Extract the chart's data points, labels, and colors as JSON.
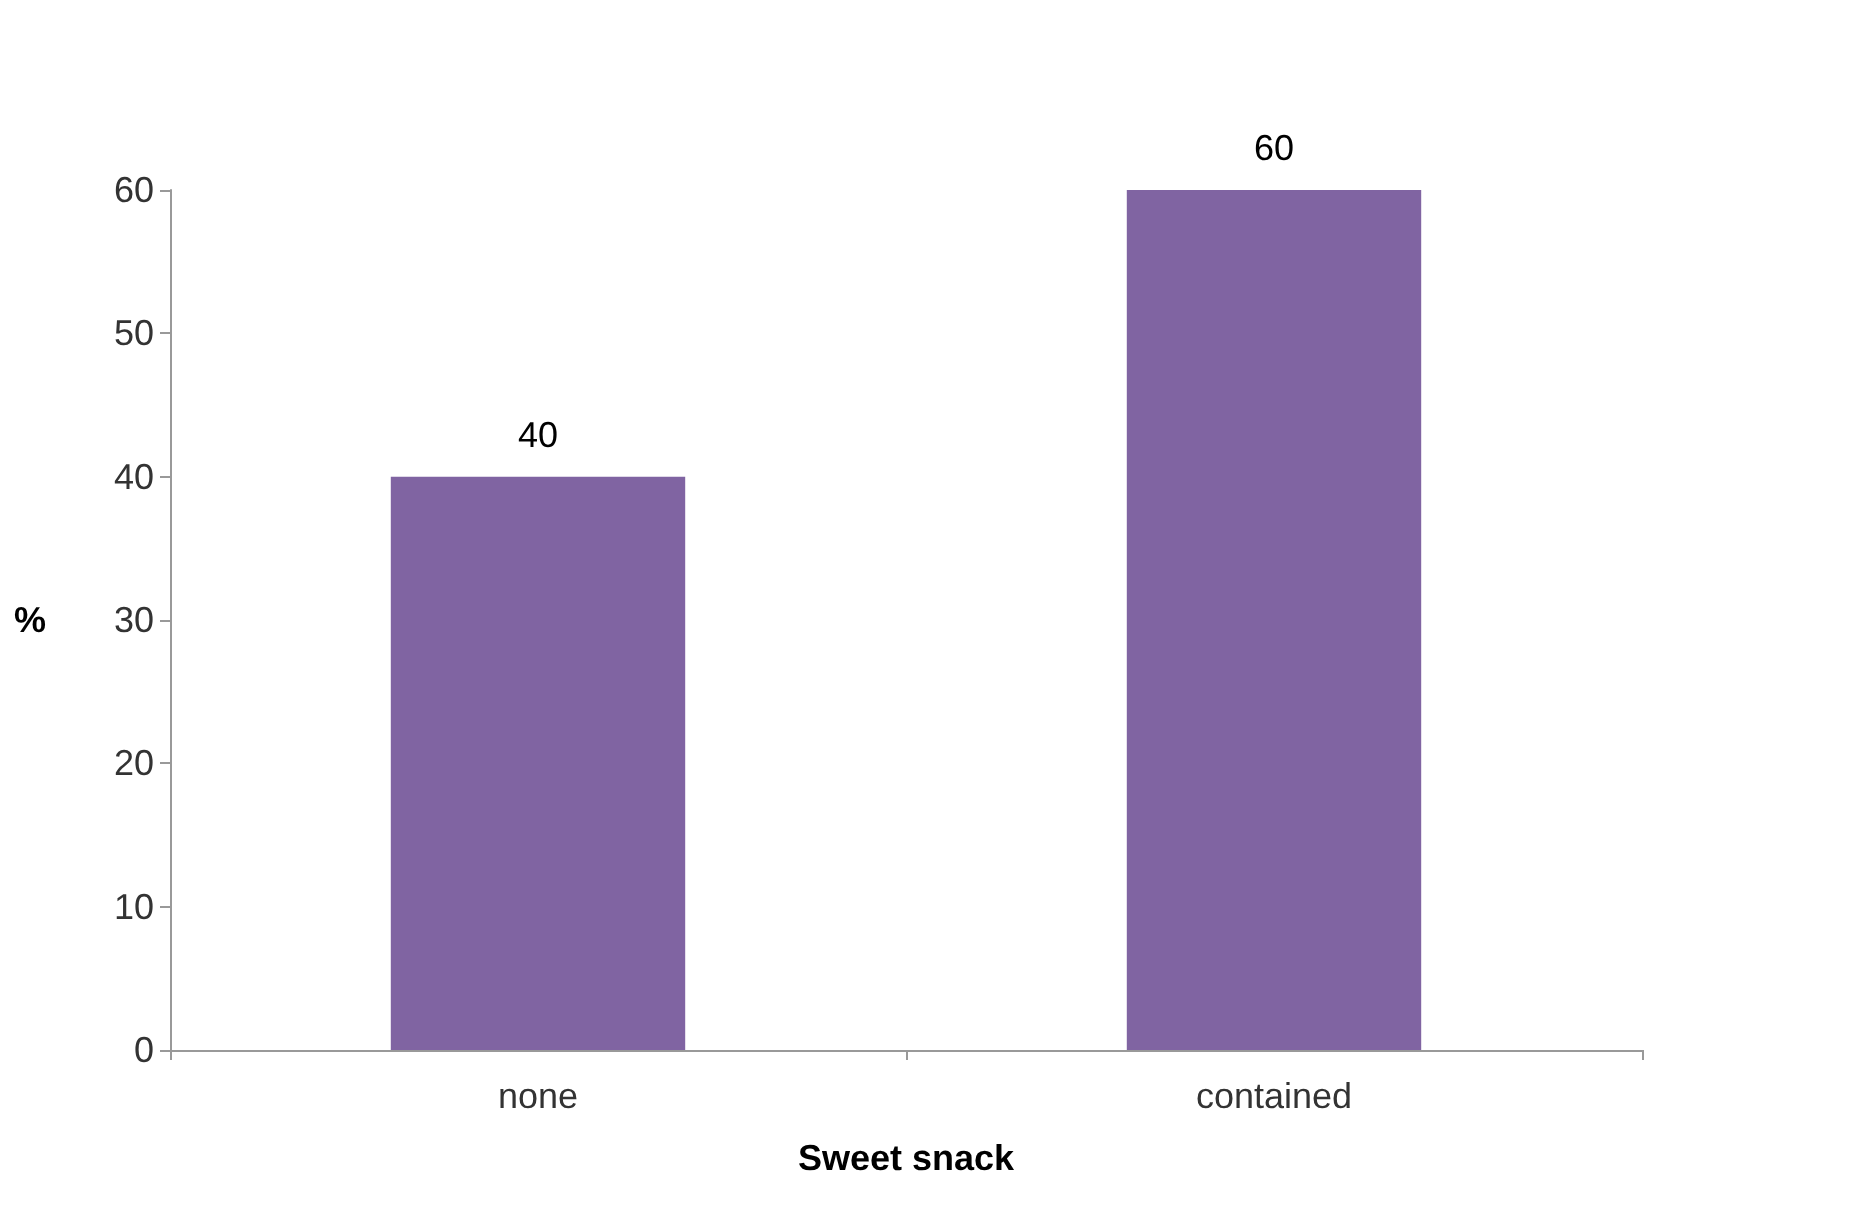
{
  "chart_data": {
    "type": "bar",
    "xlabel": "Sweet snack",
    "ylabel": "%",
    "categories": [
      "none",
      "contained"
    ],
    "values": [
      40,
      60
    ],
    "color": "#8064a2",
    "ylim": [
      0,
      60
    ],
    "yticks": [
      0,
      10,
      20,
      30,
      40,
      50,
      60
    ],
    "grid": false,
    "data_labels": true
  }
}
